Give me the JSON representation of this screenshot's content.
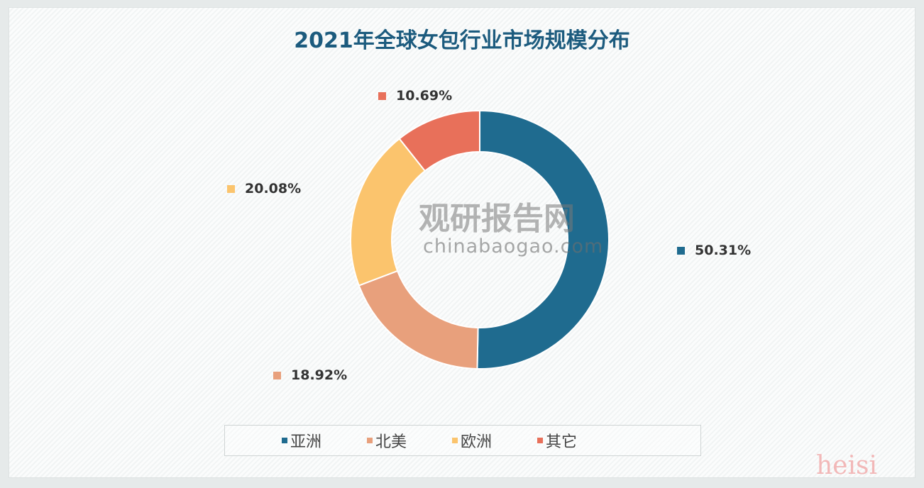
{
  "chart_data": {
    "type": "pie",
    "title": "2021年全球女包行业市场规模分布",
    "categories": [
      "亚洲",
      "北美",
      "欧洲",
      "其它"
    ],
    "values": [
      50.31,
      18.92,
      20.08,
      10.69
    ],
    "labels": [
      "50.31%",
      "18.92%",
      "20.08%",
      "10.69%"
    ],
    "colors": [
      "#1f6b8f",
      "#e8a07c",
      "#fbc46d",
      "#e8705a"
    ],
    "legend_position": "bottom",
    "donut": true
  },
  "watermark": {
    "name": "观研报告网",
    "url": "chinabaogao.com"
  },
  "signature": "heisi"
}
